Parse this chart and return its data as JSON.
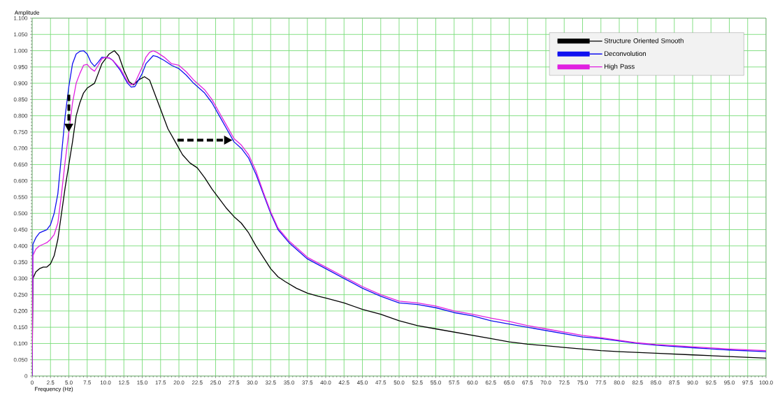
{
  "chart_data": {
    "type": "line",
    "xlabel": "Frequency (Hz)",
    "ylabel": "Amplitude",
    "xlim": [
      0,
      100
    ],
    "ylim": [
      0,
      1.1
    ],
    "xticks": [
      0,
      2.5,
      {
        "value": 5,
        "label": "5.0"
      },
      7.5,
      {
        "value": 10,
        "label": "10.0"
      },
      12.5,
      {
        "value": 15,
        "label": "15.0"
      },
      17.5,
      {
        "value": 20,
        "label": "20.0"
      },
      22.5,
      {
        "value": 25,
        "label": "25.0"
      },
      27.5,
      {
        "value": 30,
        "label": "30.0"
      },
      32.5,
      {
        "value": 35,
        "label": "35.0"
      },
      37.5,
      {
        "value": 40,
        "label": "40.0"
      },
      42.5,
      {
        "value": 45,
        "label": "45.0"
      },
      47.5,
      {
        "value": 50,
        "label": "50.0"
      },
      52.5,
      {
        "value": 55,
        "label": "55.0"
      },
      57.5,
      {
        "value": 60,
        "label": "60.0"
      },
      62.5,
      {
        "value": 65,
        "label": "65.0"
      },
      67.5,
      {
        "value": 70,
        "label": "70.0"
      },
      72.5,
      {
        "value": 75,
        "label": "75.0"
      },
      77.5,
      {
        "value": 80,
        "label": "80.0"
      },
      82.5,
      {
        "value": 85,
        "label": "85.0"
      },
      87.5,
      {
        "value": 90,
        "label": "90.0"
      },
      92.5,
      {
        "value": 95,
        "label": "95.0"
      },
      97.5,
      {
        "value": 100,
        "label": "100.0"
      }
    ],
    "yticks": [
      0,
      {
        "value": 0.05,
        "label": "0.050"
      },
      {
        "value": 0.1,
        "label": "0.100"
      },
      {
        "value": 0.15,
        "label": "0.150"
      },
      {
        "value": 0.2,
        "label": "0.200"
      },
      {
        "value": 0.25,
        "label": "0.250"
      },
      {
        "value": 0.3,
        "label": "0.300"
      },
      {
        "value": 0.35,
        "label": "0.350"
      },
      {
        "value": 0.4,
        "label": "0.400"
      },
      {
        "value": 0.45,
        "label": "0.450"
      },
      {
        "value": 0.5,
        "label": "0.500"
      },
      {
        "value": 0.55,
        "label": "0.550"
      },
      {
        "value": 0.6,
        "label": "0.600"
      },
      {
        "value": 0.65,
        "label": "0.650"
      },
      {
        "value": 0.7,
        "label": "0.700"
      },
      {
        "value": 0.75,
        "label": "0.750"
      },
      {
        "value": 0.8,
        "label": "0.800"
      },
      {
        "value": 0.85,
        "label": "0.850"
      },
      {
        "value": 0.9,
        "label": "0.900"
      },
      {
        "value": 0.95,
        "label": "0.950"
      },
      {
        "value": 1,
        "label": "1.000"
      },
      {
        "value": 1.05,
        "label": "1.050"
      },
      {
        "value": 1.1,
        "label": "1.100"
      }
    ],
    "grid": true,
    "legend": "top right",
    "marker": "none",
    "line_style": "solid",
    "series": [
      {
        "name": "Structure Oriented Smooth",
        "color": "#000000",
        "x": [
          0,
          0.1,
          0.5,
          1,
          1.5,
          2,
          2.5,
          3,
          3.5,
          4,
          4.5,
          5,
          5.5,
          6,
          6.5,
          7,
          7.5,
          8.5,
          9,
          9.5,
          10,
          10.5,
          11.2,
          11.8,
          12.5,
          13.2,
          13.8,
          14.5,
          15.3,
          16,
          16.5,
          17.5,
          18.5,
          19.5,
          20.5,
          21.5,
          22.5,
          23.5,
          24.5,
          25.5,
          26.5,
          27.5,
          28.5,
          29.5,
          30.5,
          31.5,
          32.5,
          33.5,
          34.5,
          36,
          37.5,
          39,
          40,
          42.5,
          45,
          47.5,
          50,
          52.5,
          55,
          57.5,
          60,
          62.5,
          65,
          67.5,
          70,
          72.5,
          75,
          77.5,
          80,
          85,
          90,
          95,
          100
        ],
        "values": [
          0,
          0.3,
          0.32,
          0.33,
          0.335,
          0.335,
          0.345,
          0.37,
          0.42,
          0.5,
          0.58,
          0.65,
          0.72,
          0.8,
          0.84,
          0.87,
          0.885,
          0.9,
          0.93,
          0.96,
          0.975,
          0.99,
          1.0,
          0.985,
          0.94,
          0.905,
          0.895,
          0.91,
          0.92,
          0.91,
          0.88,
          0.82,
          0.76,
          0.72,
          0.68,
          0.655,
          0.64,
          0.61,
          0.575,
          0.545,
          0.515,
          0.49,
          0.47,
          0.44,
          0.4,
          0.365,
          0.33,
          0.305,
          0.29,
          0.27,
          0.255,
          0.245,
          0.24,
          0.225,
          0.205,
          0.19,
          0.17,
          0.155,
          0.145,
          0.135,
          0.125,
          0.115,
          0.105,
          0.098,
          0.093,
          0.088,
          0.083,
          0.078,
          0.075,
          0.07,
          0.065,
          0.06,
          0.055
        ]
      },
      {
        "name": "Deconvolution",
        "color": "#1010f0",
        "x": [
          0,
          0.1,
          0.5,
          1,
          1.5,
          2,
          2.5,
          3,
          3.5,
          4,
          4.5,
          5,
          5.5,
          6,
          6.5,
          7,
          7.5,
          8,
          8.5,
          9,
          9.5,
          10.5,
          11,
          12,
          13,
          13.5,
          14,
          15,
          15.5,
          16.5,
          17,
          18,
          19,
          20,
          21,
          22,
          23,
          23.5,
          24.5,
          25.5,
          26.5,
          27.5,
          28.5,
          29.5,
          30.5,
          31.5,
          32.5,
          33.5,
          35,
          37.5,
          40,
          42.5,
          45,
          47.5,
          50,
          52.5,
          55,
          57.5,
          60,
          62.5,
          65,
          67.5,
          70,
          72.5,
          75,
          77.5,
          80,
          82.5,
          85,
          90,
          95,
          100
        ],
        "values": [
          0,
          0.405,
          0.425,
          0.44,
          0.445,
          0.45,
          0.465,
          0.5,
          0.56,
          0.68,
          0.8,
          0.89,
          0.96,
          0.99,
          0.998,
          1.0,
          0.99,
          0.965,
          0.952,
          0.965,
          0.98,
          0.978,
          0.97,
          0.94,
          0.9,
          0.888,
          0.89,
          0.93,
          0.96,
          0.985,
          0.982,
          0.97,
          0.955,
          0.945,
          0.925,
          0.9,
          0.88,
          0.87,
          0.84,
          0.8,
          0.76,
          0.72,
          0.7,
          0.67,
          0.62,
          0.56,
          0.5,
          0.45,
          0.41,
          0.36,
          0.33,
          0.3,
          0.27,
          0.245,
          0.225,
          0.22,
          0.21,
          0.195,
          0.185,
          0.17,
          0.16,
          0.15,
          0.14,
          0.13,
          0.12,
          0.115,
          0.108,
          0.1,
          0.095,
          0.087,
          0.08,
          0.075
        ]
      },
      {
        "name": "High Pass",
        "color": "#e020e0",
        "x": [
          0,
          0.1,
          0.5,
          1,
          1.5,
          2,
          2.5,
          3,
          3.5,
          4,
          4.5,
          5,
          5.5,
          6,
          6.5,
          7,
          7.5,
          8,
          8.5,
          9,
          9.5,
          10,
          10.5,
          11,
          12,
          13,
          13.5,
          14,
          15,
          15.5,
          16,
          16.5,
          17,
          18,
          19,
          20,
          21,
          22,
          23,
          23.5,
          24.5,
          25.5,
          26.5,
          27.5,
          28.5,
          29.5,
          30.5,
          31.5,
          32.5,
          33.5,
          35,
          37.5,
          40,
          42.5,
          45,
          47.5,
          50,
          52.5,
          55,
          57.5,
          60,
          62.5,
          65,
          67.5,
          70,
          72.5,
          75,
          77.5,
          80,
          82.5,
          85,
          90,
          95,
          100
        ],
        "values": [
          0,
          0.37,
          0.39,
          0.4,
          0.405,
          0.41,
          0.42,
          0.435,
          0.47,
          0.56,
          0.66,
          0.75,
          0.84,
          0.9,
          0.93,
          0.955,
          0.958,
          0.945,
          0.937,
          0.955,
          0.975,
          0.98,
          0.977,
          0.97,
          0.945,
          0.905,
          0.895,
          0.9,
          0.95,
          0.98,
          0.995,
          1.0,
          0.995,
          0.98,
          0.96,
          0.955,
          0.935,
          0.91,
          0.89,
          0.88,
          0.85,
          0.81,
          0.77,
          0.73,
          0.71,
          0.68,
          0.63,
          0.565,
          0.505,
          0.455,
          0.415,
          0.365,
          0.335,
          0.305,
          0.275,
          0.25,
          0.23,
          0.225,
          0.215,
          0.2,
          0.19,
          0.178,
          0.168,
          0.155,
          0.145,
          0.135,
          0.125,
          0.118,
          0.11,
          0.102,
          0.097,
          0.09,
          0.083,
          0.078
        ]
      }
    ]
  }
}
